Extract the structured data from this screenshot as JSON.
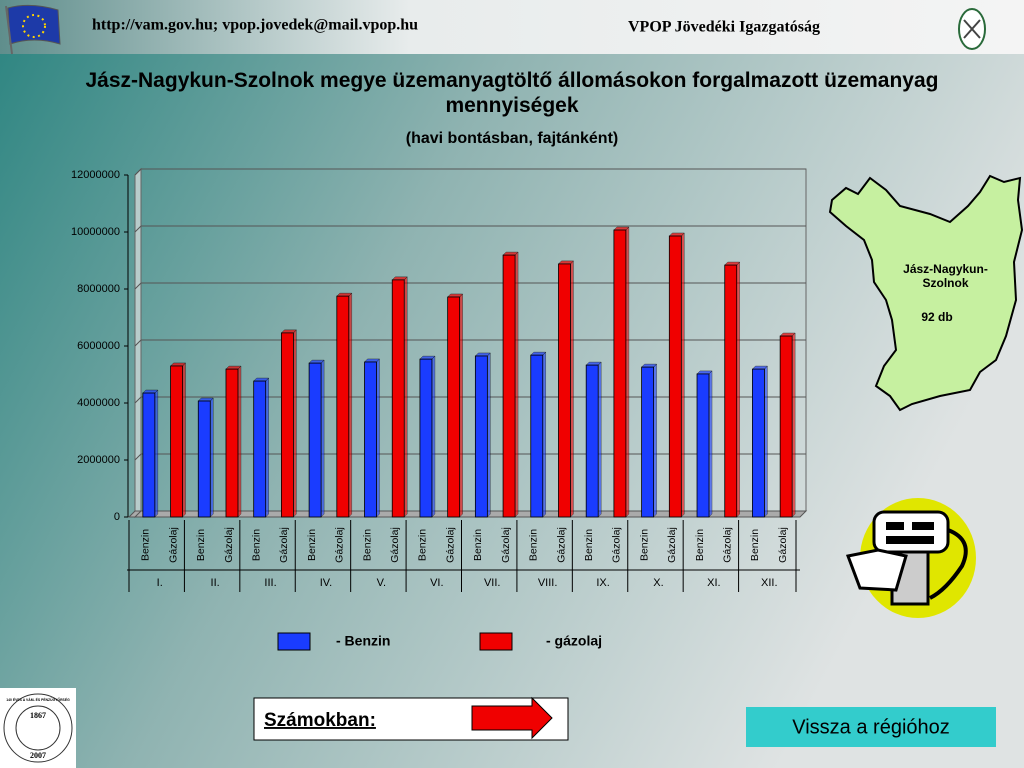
{
  "header": {
    "url": "http://vam.gov.hu; vpop.jovedek@mail.vpop.hu",
    "org": "VPOP Jövedéki Igazgatóság"
  },
  "chart_data": {
    "type": "bar",
    "title": "Jász-Nagykun-Szolnok megye üzemanyagtöltő állomásokon forgalmazott üzemanyag mennyiségek",
    "subtitle": "(havi bontásban, fajtánként)",
    "categories": [
      "I.",
      "II.",
      "III.",
      "IV.",
      "V.",
      "VI.",
      "VII.",
      "VIII.",
      "IX.",
      "X.",
      "XI.",
      "XII."
    ],
    "series": [
      {
        "name": "Benzin",
        "color": "#1a3cff",
        "values": [
          4350000,
          4070000,
          4770000,
          5400000,
          5440000,
          5540000,
          5650000,
          5680000,
          5330000,
          5260000,
          5020000,
          5190000
        ]
      },
      {
        "name": "Gázolaj",
        "color": "#f00000",
        "values": [
          5300000,
          5190000,
          6460000,
          7750000,
          8320000,
          7720000,
          9190000,
          8880000,
          10070000,
          9860000,
          8840000,
          6350000
        ]
      }
    ],
    "legend_labels": [
      "- Benzin",
      "- gázolaj"
    ],
    "ylim": [
      0,
      12000000
    ],
    "yticks": [
      0,
      2000000,
      4000000,
      6000000,
      8000000,
      10000000,
      12000000
    ],
    "grid": true
  },
  "map": {
    "label": "Jász-Nagykun-Szolnok",
    "count": "92 db"
  },
  "stamp": {
    "text": "140 ÉVES A VÁM- ÉS PÉNZÜGYŐRSÉG",
    "start": "1867",
    "end": "2007"
  },
  "link": {
    "label": "Számokban:"
  },
  "button": {
    "label": "Vissza a régióhoz"
  }
}
